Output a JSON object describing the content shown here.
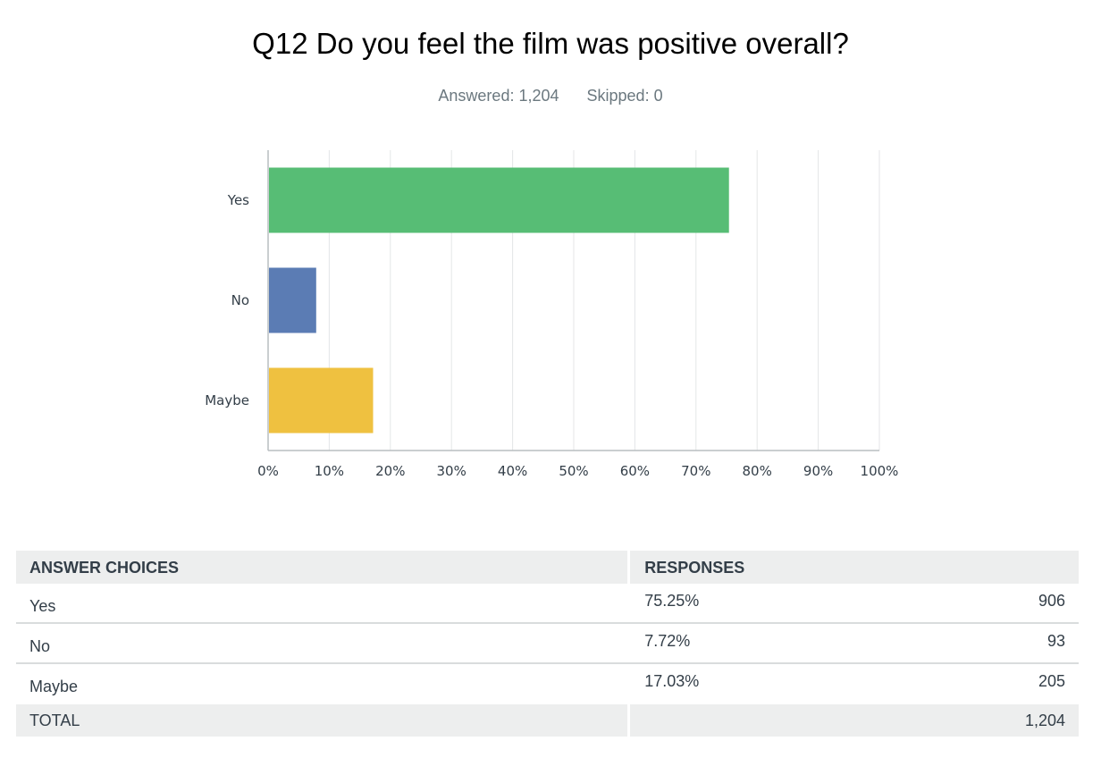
{
  "question": {
    "title": "Q12 Do you feel the film was positive overall?",
    "answered": "Answered: 1,204",
    "skipped": "Skipped: 0"
  },
  "chart_data": {
    "type": "bar",
    "orientation": "horizontal",
    "categories": [
      "Yes",
      "No",
      "Maybe"
    ],
    "values": [
      75.25,
      7.72,
      17.03
    ],
    "colors": [
      "#57bd75",
      "#5b7cb4",
      "#efc140"
    ],
    "xlim": [
      0,
      100
    ],
    "xticks": [
      "0%",
      "10%",
      "20%",
      "30%",
      "40%",
      "50%",
      "60%",
      "70%",
      "80%",
      "90%",
      "100%"
    ],
    "grid": true
  },
  "table": {
    "header_choices": "ANSWER CHOICES",
    "header_responses": "RESPONSES",
    "rows": [
      {
        "choice": "Yes",
        "percent": "75.25%",
        "count": "906"
      },
      {
        "choice": "No",
        "percent": "7.72%",
        "count": "93"
      },
      {
        "choice": "Maybe",
        "percent": "17.03%",
        "count": "205"
      }
    ],
    "total_label": "TOTAL",
    "total_count": "1,204"
  }
}
